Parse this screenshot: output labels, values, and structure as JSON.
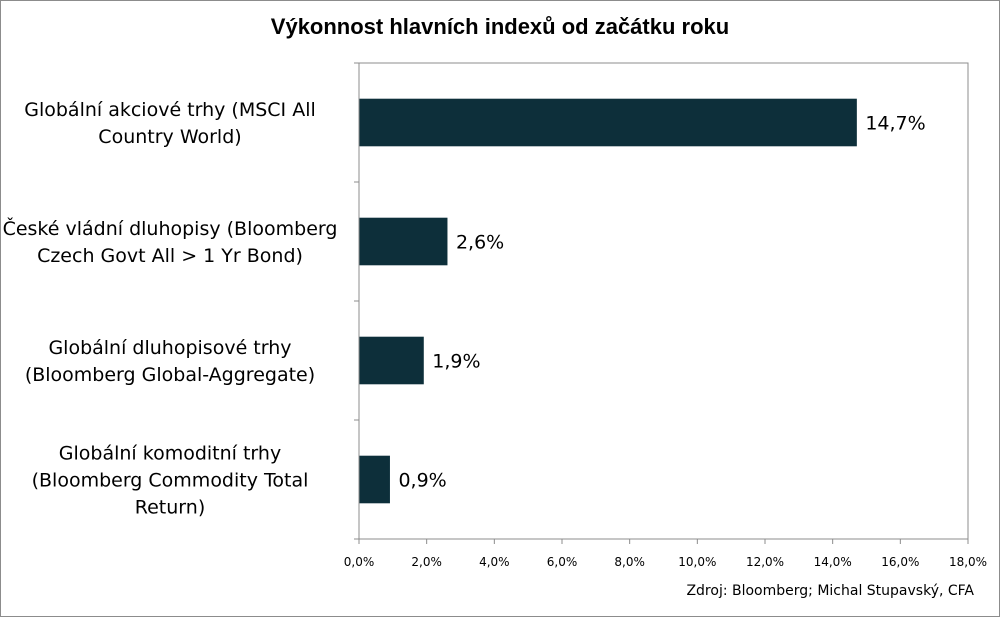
{
  "chart_data": {
    "type": "bar",
    "orientation": "horizontal",
    "title": "Výkonnost hlavních indexů od začátku roku",
    "categories": [
      "Globální akciové trhy (MSCI All Country World)",
      "České vládní dluhopisy (Bloomberg Czech Govt All > 1 Yr Bond)",
      "Globální dluhopisové trhy (Bloomberg Global-Aggregate)",
      "Globální komoditní trhy (Bloomberg Commodity Total Return)"
    ],
    "category_lines": [
      [
        "Globální akciové trhy (MSCI All",
        "Country World)"
      ],
      [
        "České vládní dluhopisy (Bloomberg",
        "Czech Govt All > 1 Yr Bond)"
      ],
      [
        "Globální dluhopisové trhy",
        "(Bloomberg Global-Aggregate)"
      ],
      [
        "Globální komoditní trhy",
        "(Bloomberg Commodity Total",
        "Return)"
      ]
    ],
    "values": [
      14.7,
      2.6,
      1.9,
      0.9
    ],
    "value_labels": [
      "14,7%",
      "2,6%",
      "1,9%",
      "0,9%"
    ],
    "xlim": [
      0,
      18
    ],
    "x_ticks": [
      0,
      2,
      4,
      6,
      8,
      10,
      12,
      14,
      16,
      18
    ],
    "x_tick_labels": [
      "0,0%",
      "2,0%",
      "4,0%",
      "6,0%",
      "8,0%",
      "10,0%",
      "12,0%",
      "14,0%",
      "16,0%",
      "18,0%"
    ],
    "xlabel": "",
    "ylabel": "",
    "grid": false,
    "legend": "none",
    "bar_color": "#0d2f3a",
    "source": "Zdroj: Bloomberg; Michal Stupavský, CFA"
  }
}
